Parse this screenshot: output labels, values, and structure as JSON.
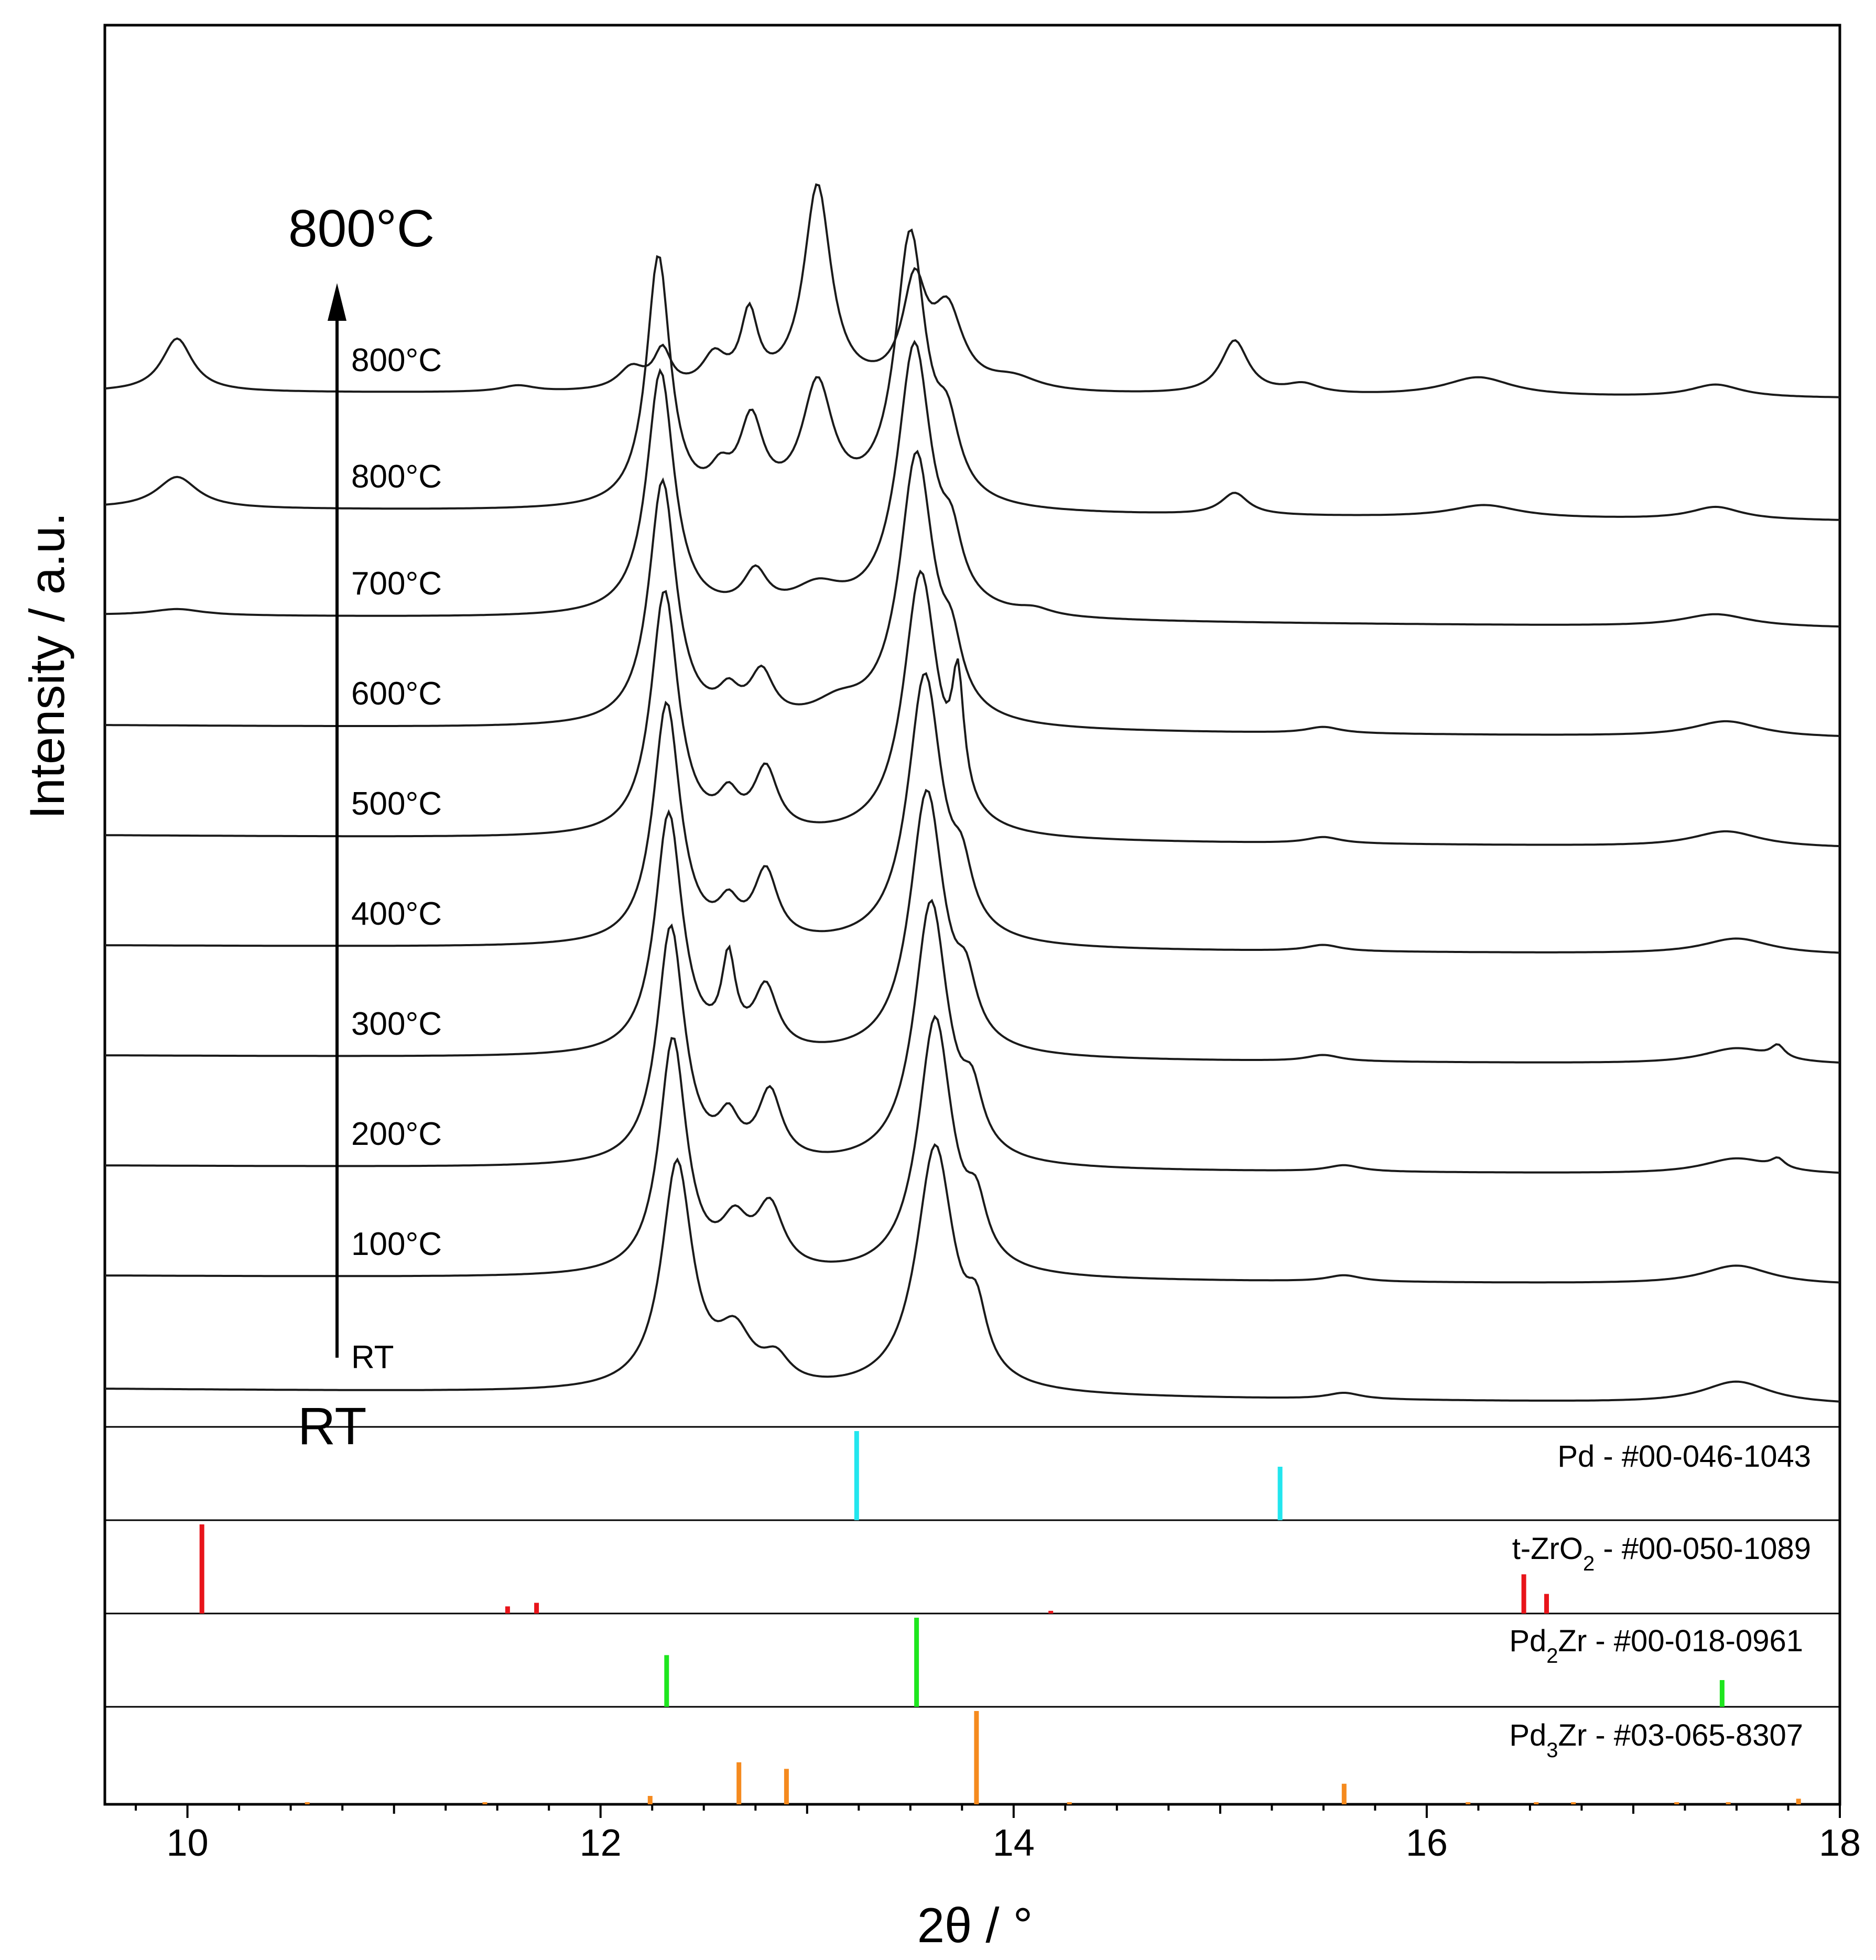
{
  "chart_data": {
    "type": "line",
    "title": "",
    "xlabel": "2θ / °",
    "ylabel": "Intensity / a.u.",
    "xlim": [
      9.6,
      18.0
    ],
    "x_ticks": [
      10,
      12,
      14,
      16,
      18
    ],
    "x_tick_labels": [
      "10",
      "12",
      "14",
      "16",
      "18"
    ],
    "ylim": [
      0,
      1
    ],
    "grid": false,
    "arrow": {
      "from_label": "RT",
      "to_label": "800°C"
    },
    "series": [
      {
        "name": "RT",
        "label": "RT",
        "baseline": 0.0,
        "start": 0.0,
        "end": -0.05,
        "peaks": [
          [
            12.37,
            0.72,
            0.09
          ],
          [
            12.65,
            0.16,
            0.1
          ],
          [
            12.85,
            0.08,
            0.08
          ],
          [
            13.62,
            0.78,
            0.11
          ],
          [
            13.82,
            0.18,
            0.06
          ],
          [
            15.6,
            0.02,
            0.1
          ],
          [
            17.5,
            0.07,
            0.2
          ]
        ]
      },
      {
        "name": "100°C",
        "label": "100°C",
        "baseline": 0.36,
        "start": 0.0,
        "end": -0.03,
        "peaks": [
          [
            12.35,
            0.75,
            0.08
          ],
          [
            12.65,
            0.14,
            0.08
          ],
          [
            12.82,
            0.2,
            0.08
          ],
          [
            13.62,
            0.82,
            0.1
          ],
          [
            13.82,
            0.16,
            0.06
          ],
          [
            15.6,
            0.02,
            0.1
          ],
          [
            17.5,
            0.06,
            0.2
          ]
        ]
      },
      {
        "name": "200°C",
        "label": "200°C",
        "baseline": 0.71,
        "start": 0.0,
        "end": -0.03,
        "peaks": [
          [
            12.34,
            0.76,
            0.08
          ],
          [
            12.62,
            0.12,
            0.06
          ],
          [
            12.82,
            0.22,
            0.07
          ],
          [
            13.6,
            0.84,
            0.1
          ],
          [
            13.8,
            0.16,
            0.06
          ],
          [
            15.6,
            0.02,
            0.1
          ],
          [
            17.5,
            0.05,
            0.2
          ],
          [
            17.7,
            0.03,
            0.04
          ]
        ]
      },
      {
        "name": "300°C",
        "label": "300°C",
        "baseline": 1.06,
        "start": 0.0,
        "end": -0.03,
        "peaks": [
          [
            12.33,
            0.77,
            0.08
          ],
          [
            12.62,
            0.27,
            0.04
          ],
          [
            12.8,
            0.2,
            0.07
          ],
          [
            13.58,
            0.84,
            0.1
          ],
          [
            13.77,
            0.16,
            0.06
          ],
          [
            15.5,
            0.02,
            0.1
          ],
          [
            17.5,
            0.05,
            0.2
          ],
          [
            17.7,
            0.04,
            0.04
          ]
        ]
      },
      {
        "name": "400°C",
        "label": "400°C",
        "baseline": 1.41,
        "start": 0.0,
        "end": -0.03,
        "peaks": [
          [
            12.32,
            0.77,
            0.08
          ],
          [
            12.62,
            0.1,
            0.06
          ],
          [
            12.8,
            0.22,
            0.07
          ],
          [
            13.57,
            0.86,
            0.1
          ],
          [
            13.75,
            0.16,
            0.06
          ],
          [
            15.5,
            0.02,
            0.1
          ],
          [
            17.5,
            0.05,
            0.2
          ]
        ]
      },
      {
        "name": "500°C",
        "label": "500°C",
        "baseline": 1.76,
        "start": 0.0,
        "end": -0.04,
        "peaks": [
          [
            12.31,
            0.78,
            0.08
          ],
          [
            12.62,
            0.1,
            0.06
          ],
          [
            12.8,
            0.2,
            0.07
          ],
          [
            13.55,
            0.84,
            0.1
          ],
          [
            13.73,
            0.38,
            0.035
          ],
          [
            15.5,
            0.02,
            0.1
          ],
          [
            17.45,
            0.05,
            0.2
          ]
        ]
      },
      {
        "name": "600°C",
        "label": "600°C",
        "baseline": 2.11,
        "start": 0.0,
        "end": -0.04,
        "peaks": [
          [
            12.3,
            0.78,
            0.08
          ],
          [
            12.62,
            0.08,
            0.06
          ],
          [
            12.78,
            0.15,
            0.07
          ],
          [
            13.15,
            0.06,
            0.15
          ],
          [
            13.53,
            0.86,
            0.1
          ],
          [
            13.7,
            0.16,
            0.06
          ],
          [
            15.5,
            0.02,
            0.1
          ],
          [
            17.45,
            0.05,
            0.2
          ]
        ]
      },
      {
        "name": "700°C",
        "label": "700°C",
        "baseline": 2.46,
        "start": 0.0,
        "end": -0.04,
        "peaks": [
          [
            9.95,
            0.02,
            0.15
          ],
          [
            12.29,
            0.78,
            0.08
          ],
          [
            12.75,
            0.12,
            0.07
          ],
          [
            13.05,
            0.08,
            0.15
          ],
          [
            13.52,
            0.86,
            0.1
          ],
          [
            13.7,
            0.16,
            0.06
          ],
          [
            14.1,
            0.02,
            0.1
          ],
          [
            17.4,
            0.04,
            0.2
          ]
        ]
      },
      {
        "name": "800°C (1)",
        "label": "800°C",
        "baseline": 2.8,
        "start": 0.0,
        "end": -0.04,
        "peaks": [
          [
            9.95,
            0.1,
            0.12
          ],
          [
            12.28,
            0.8,
            0.07
          ],
          [
            12.58,
            0.08,
            0.06
          ],
          [
            12.73,
            0.26,
            0.07
          ],
          [
            13.05,
            0.38,
            0.09
          ],
          [
            13.5,
            0.86,
            0.09
          ],
          [
            13.68,
            0.2,
            0.07
          ],
          [
            15.07,
            0.07,
            0.08
          ],
          [
            16.28,
            0.04,
            0.2
          ],
          [
            17.4,
            0.04,
            0.15
          ]
        ]
      },
      {
        "name": "800°C (2)",
        "label": "800°C",
        "baseline": 3.17,
        "start": 0.0,
        "end": -0.02,
        "peaks": [
          [
            9.95,
            0.17,
            0.09
          ],
          [
            11.6,
            0.02,
            0.1
          ],
          [
            12.15,
            0.07,
            0.08
          ],
          [
            12.3,
            0.12,
            0.05
          ],
          [
            12.55,
            0.1,
            0.07
          ],
          [
            12.72,
            0.23,
            0.05
          ],
          [
            13.05,
            0.65,
            0.08
          ],
          [
            13.52,
            0.32,
            0.07
          ],
          [
            13.68,
            0.24,
            0.09
          ],
          [
            14.0,
            0.04,
            0.15
          ],
          [
            15.07,
            0.17,
            0.08
          ],
          [
            15.4,
            0.03,
            0.1
          ],
          [
            16.25,
            0.06,
            0.2
          ],
          [
            17.4,
            0.04,
            0.15
          ]
        ]
      }
    ],
    "references": [
      {
        "name": "Pd",
        "label": "Pd - #00-046-1043",
        "color": "#22e6ee",
        "lines": [
          [
            13.24,
            1.0
          ],
          [
            15.29,
            0.6
          ]
        ]
      },
      {
        "name": "t-ZrO2",
        "label": "t-ZrO2 - #00-050-1089",
        "label_parts": [
          "t-ZrO",
          "2",
          " - #00-050-1089"
        ],
        "color": "#e8141a",
        "lines": [
          [
            10.07,
            1.0
          ],
          [
            11.55,
            0.08
          ],
          [
            11.69,
            0.12
          ],
          [
            14.18,
            0.03
          ],
          [
            16.47,
            0.44
          ],
          [
            16.58,
            0.22
          ]
        ]
      },
      {
        "name": "Pd2Zr",
        "label": "Pd2Zr - #00-018-0961",
        "label_parts": [
          "Pd",
          "2",
          "Zr - #00-018-0961"
        ],
        "color": "#1ee61e",
        "lines": [
          [
            12.32,
            0.58
          ],
          [
            13.53,
            1.0
          ],
          [
            17.43,
            0.3
          ]
        ]
      },
      {
        "name": "Pd3Zr",
        "label": "Pd3Zr - #03-065-8307",
        "label_parts": [
          "Pd",
          "3",
          "Zr - #03-065-8307"
        ],
        "color": "#f58a1e",
        "lines": [
          [
            10.58,
            0.02
          ],
          [
            11.44,
            0.02
          ],
          [
            12.24,
            0.09
          ],
          [
            12.67,
            0.45
          ],
          [
            12.9,
            0.38
          ],
          [
            13.82,
            1.0
          ],
          [
            14.27,
            0.02
          ],
          [
            15.6,
            0.22
          ],
          [
            16.2,
            0.02
          ],
          [
            16.53,
            0.02
          ],
          [
            16.71,
            0.02
          ],
          [
            17.21,
            0.02
          ],
          [
            17.46,
            0.02
          ],
          [
            17.8,
            0.06
          ]
        ]
      }
    ]
  }
}
